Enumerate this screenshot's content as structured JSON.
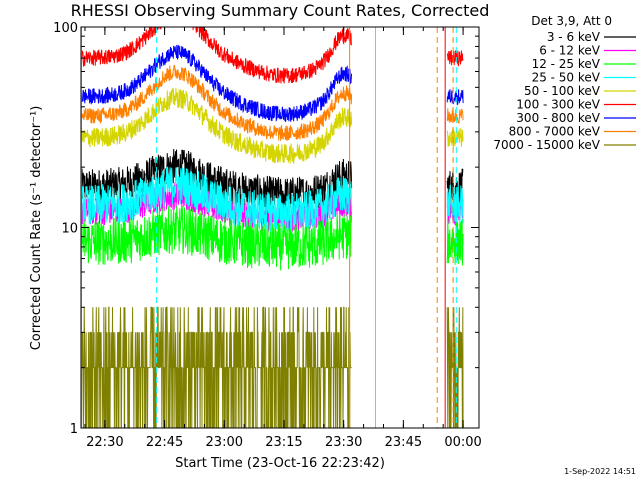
{
  "chart_data": {
    "type": "line",
    "title": "RHESSI Observing Summary Count Rates, Corrected",
    "xlabel": "Start Time (23-Oct-16 22:23:42)",
    "ylabel": "Corrected Count Rate (s⁻¹ detector⁻¹)",
    "y_scale": "log",
    "ylim": [
      1,
      100
    ],
    "xlim_minutes_after_2220": [
      4,
      104
    ],
    "x_ticks": [
      {
        "label": "22:30",
        "minute": 10
      },
      {
        "label": "22:45",
        "minute": 25
      },
      {
        "label": "23:00",
        "minute": 40
      },
      {
        "label": "23:15",
        "minute": 55
      },
      {
        "label": "23:30",
        "minute": 70
      },
      {
        "label": "23:45",
        "minute": 85
      },
      {
        "label": "00:00",
        "minute": 100
      }
    ],
    "y_ticks": [
      {
        "label": "1",
        "value": 1
      },
      {
        "label": "10",
        "value": 10
      },
      {
        "label": "100",
        "value": 100
      }
    ],
    "legend_title": "Det 3,9, Att 0",
    "legend_position": "right",
    "series": [
      {
        "name": "3 - 6 keV",
        "color": "#000000",
        "level": 16,
        "noise": 0.09,
        "hump": 0.1
      },
      {
        "name": "6 - 12 keV",
        "color": "#ff00ff",
        "level": 12,
        "noise": 0.07,
        "hump": 0.08
      },
      {
        "name": "12 - 25 keV",
        "color": "#00ff00",
        "level": 8.5,
        "noise": 0.12,
        "hump": 0.06
      },
      {
        "name": "25 - 50 keV",
        "color": "#00ffff",
        "level": 13,
        "noise": 0.1,
        "hump": 0.1
      },
      {
        "name": "50 - 100 keV",
        "color": "#d4d400",
        "level": 28,
        "noise": 0.05,
        "hump": 0.2
      },
      {
        "name": "100 - 300 keV",
        "color": "#ff0000",
        "level": 70,
        "noise": 0.04,
        "hump": 0.22
      },
      {
        "name": "300 - 800 keV",
        "color": "#0000ff",
        "level": 45,
        "noise": 0.04,
        "hump": 0.22
      },
      {
        "name": "800 - 7000 keV",
        "color": "#ff8000",
        "level": 36,
        "noise": 0.04,
        "hump": 0.22
      },
      {
        "name": "7000 - 15000 keV",
        "color": "#808000",
        "level": 2,
        "noise": 0.35,
        "hump": 0.0
      }
    ],
    "vertical_markers": [
      {
        "minute": 4.1,
        "color": "#00ffff",
        "style": "solid"
      },
      {
        "minute": 23.0,
        "color": "#00ffff",
        "style": "dashed"
      },
      {
        "minute": 71.5,
        "color": "#ff8000",
        "style": "solid"
      },
      {
        "minute": 78.0,
        "color": "#00ffff",
        "style": "solid"
      },
      {
        "minute": 93.5,
        "color": "#ff8000",
        "style": "dashed"
      },
      {
        "minute": 95.5,
        "color": "#ff0000",
        "style": "solid"
      },
      {
        "minute": 97.5,
        "color": "#ff8000",
        "style": "dashed"
      },
      {
        "minute": 98.3,
        "color": "#00ffff",
        "style": "dashed"
      }
    ],
    "gap_minutes": [
      72,
      96
    ],
    "timestamp": "1-Sep-2022 14:51"
  }
}
